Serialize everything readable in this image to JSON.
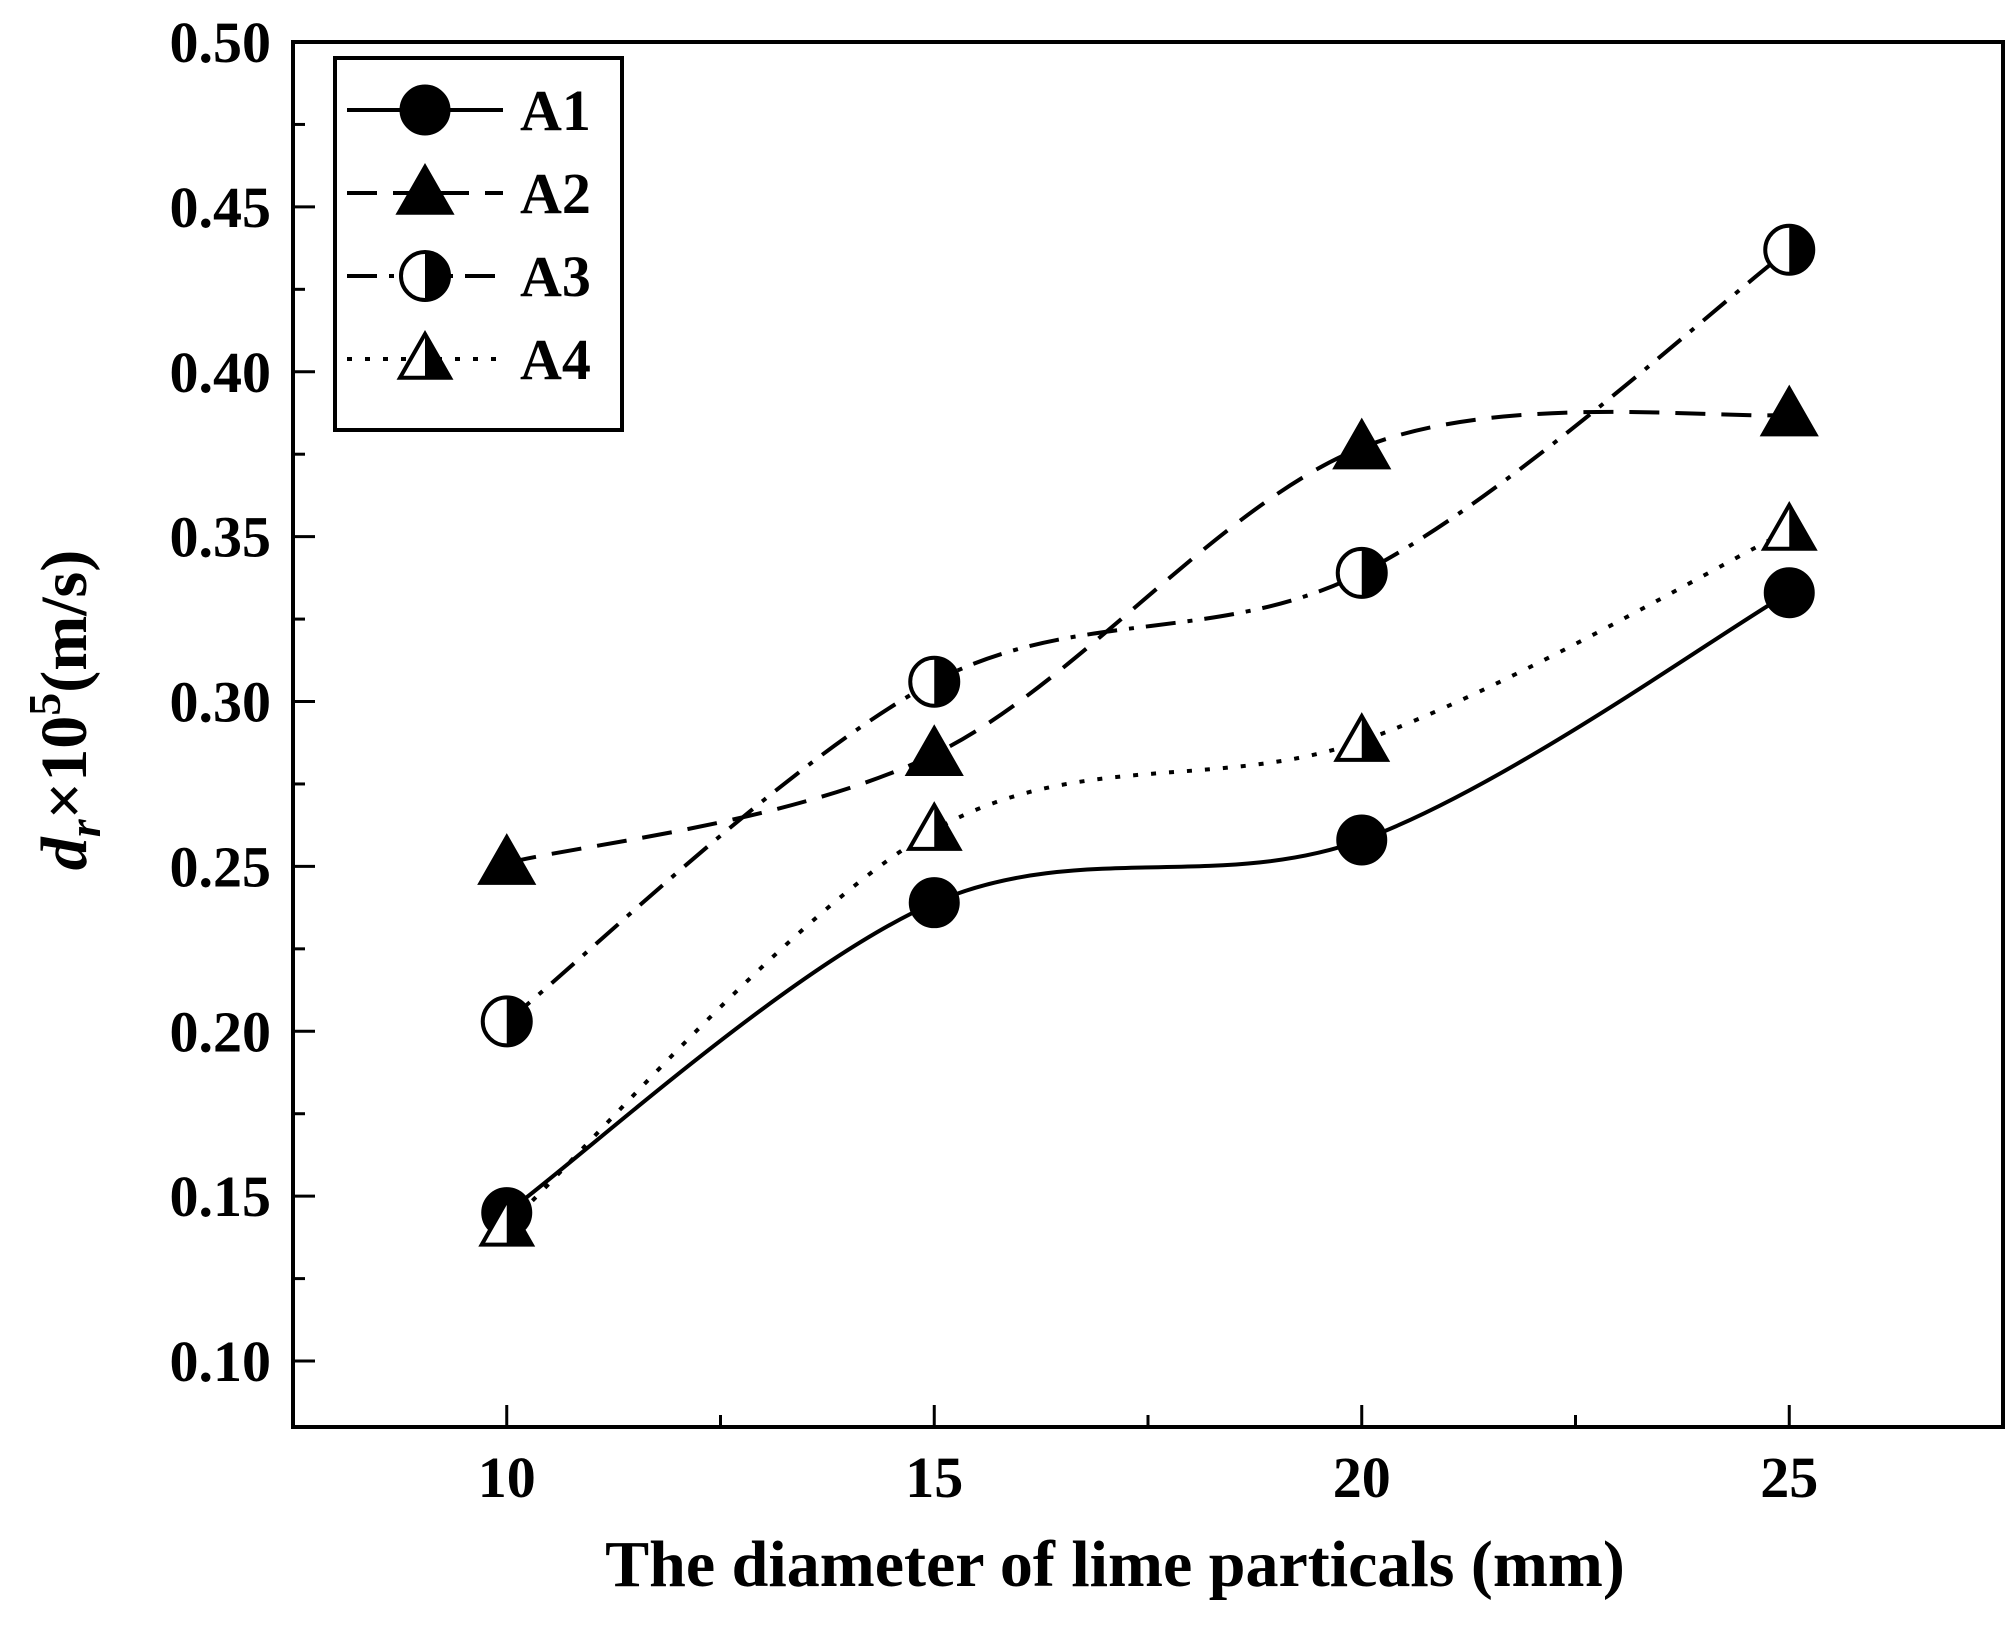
{
  "chart_data": {
    "type": "line",
    "title": "",
    "xlabel": "The diameter of lime particals (mm)",
    "ylabel": {
      "base": "d",
      "subscript": "r",
      "times": "×10",
      "exponent": "5",
      "unit": "(m/s)"
    },
    "xlim": [
      7.5,
      27.5
    ],
    "ylim": [
      0.08,
      0.5
    ],
    "x_ticks": [
      10,
      15,
      20,
      25
    ],
    "x_tick_labels": [
      "10",
      "15",
      "20",
      "25"
    ],
    "y_ticks": [
      0.1,
      0.15,
      0.2,
      0.25,
      0.3,
      0.35,
      0.4,
      0.45,
      0.5
    ],
    "y_tick_labels": [
      "0.10",
      "0.15",
      "0.20",
      "0.25",
      "0.30",
      "0.35",
      "0.40",
      "0.45",
      "0.50"
    ],
    "grid": false,
    "legend_position": "top-left",
    "x": [
      10,
      15,
      20,
      25
    ],
    "series": [
      {
        "name": "A1",
        "values": [
          0.145,
          0.239,
          0.258,
          0.333
        ],
        "line": "solid",
        "marker": "circle-filled"
      },
      {
        "name": "A2",
        "values": [
          0.251,
          0.284,
          0.377,
          0.387
        ],
        "line": "dashed",
        "marker": "triangle-filled"
      },
      {
        "name": "A3",
        "values": [
          0.203,
          0.306,
          0.339,
          0.437
        ],
        "line": "dashdot",
        "marker": "circle-half"
      },
      {
        "name": "A4",
        "values": [
          0.141,
          0.261,
          0.288,
          0.352
        ],
        "line": "dotted",
        "marker": "triangle-half"
      }
    ]
  }
}
